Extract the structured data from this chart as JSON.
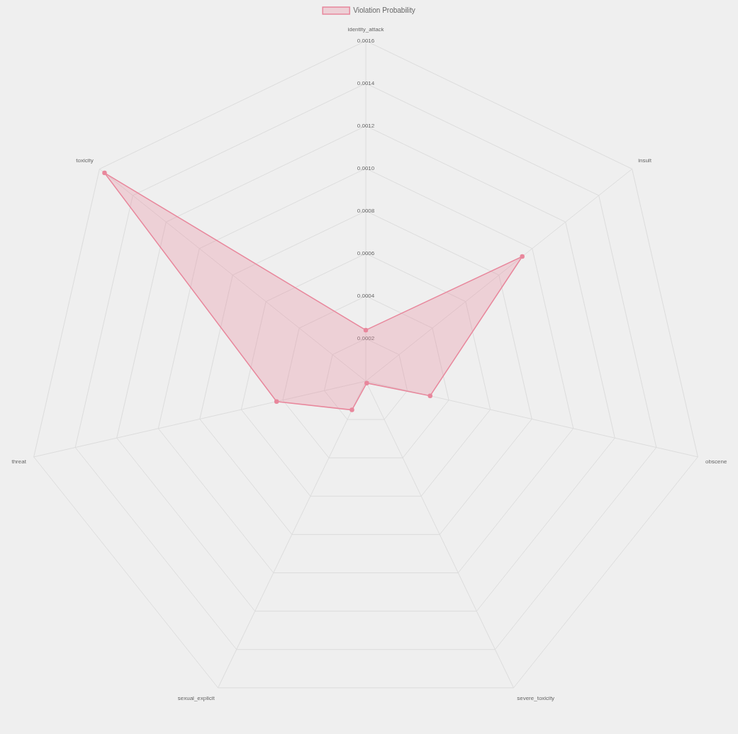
{
  "chart_data": {
    "type": "radar",
    "categories": [
      "identity_attack",
      "insult",
      "obscene",
      "severe_toxicity",
      "sexual_explicit",
      "threat",
      "toxicity"
    ],
    "series": [
      {
        "name": "Violation Probability",
        "color": "#e8879c",
        "values": [
          0.00024,
          0.00094,
          0.00031,
          1e-05,
          0.00015,
          0.00043,
          0.00157
        ]
      }
    ],
    "ylim": [
      0,
      0.0016
    ],
    "yticks": [
      0.0002,
      0.0004,
      0.0006,
      0.0008,
      {
        "value": 0.001,
        "label": "0.0010"
      },
      0.0012,
      0.0014,
      0.0016
    ],
    "grid": true,
    "legend": "top",
    "marker": "circle"
  }
}
